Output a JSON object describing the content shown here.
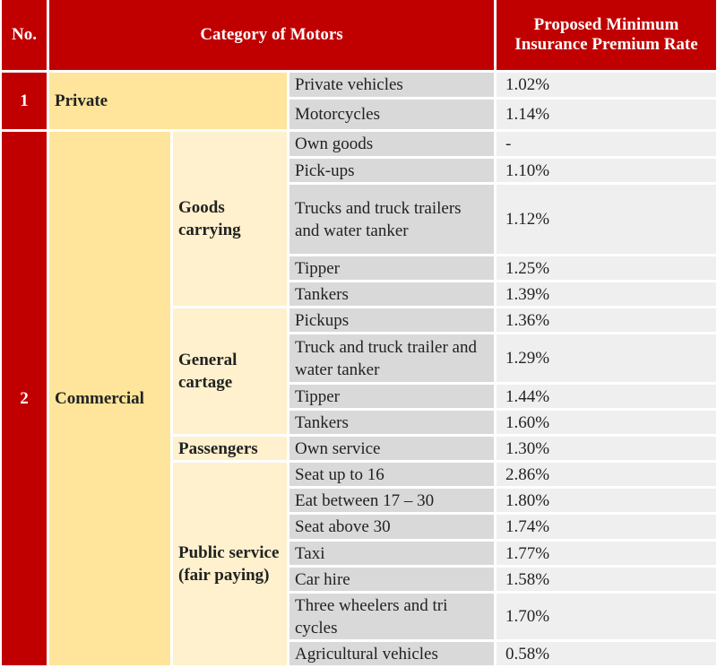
{
  "header": {
    "no": "No.",
    "category": "Category of Motors",
    "rate": "Proposed Minimum Insurance Premium Rate"
  },
  "groups": [
    {
      "no": "1",
      "category": "Private",
      "items": [
        {
          "label": "Private vehicles",
          "rate": "1.02%"
        },
        {
          "label": "Motorcycles",
          "rate": "1.14%"
        }
      ]
    },
    {
      "no": "2",
      "category": "Commercial",
      "subgroups": [
        {
          "label": "Goods carrying",
          "items": [
            {
              "label": "Own goods",
              "rate": "-"
            },
            {
              "label": "Pick-ups",
              "rate": "1.10%"
            },
            {
              "label": "Trucks and truck trailers and water tanker",
              "rate": "1.12%"
            },
            {
              "label": "Tipper",
              "rate": "1.25%"
            },
            {
              "label": "Tankers",
              "rate": "1.39%"
            }
          ]
        },
        {
          "label": "General cartage",
          "items": [
            {
              "label": "Pickups",
              "rate": "1.36%"
            },
            {
              "label": "Truck and truck trailer and water tanker",
              "rate": "1.29%"
            },
            {
              "label": "Tipper",
              "rate": "1.44%"
            },
            {
              "label": "Tankers",
              "rate": "1.60%"
            }
          ]
        },
        {
          "label": "Passengers",
          "items": [
            {
              "label": "Own service",
              "rate": "1.30%"
            }
          ]
        },
        {
          "label": "Public service (fair paying)",
          "items": [
            {
              "label": "Seat up to 16",
              "rate": "2.86%"
            },
            {
              "label": "Eat between 17 – 30",
              "rate": "1.80%"
            },
            {
              "label": "Seat above 30",
              "rate": "1.74%"
            },
            {
              "label": "Taxi",
              "rate": "1.77%"
            },
            {
              "label": "Car hire",
              "rate": "1.58%"
            },
            {
              "label": "Three wheelers and tri cycles",
              "rate": "1.70%"
            },
            {
              "label": "Agricultural vehicles",
              "rate": "0.58%"
            }
          ]
        }
      ]
    }
  ]
}
